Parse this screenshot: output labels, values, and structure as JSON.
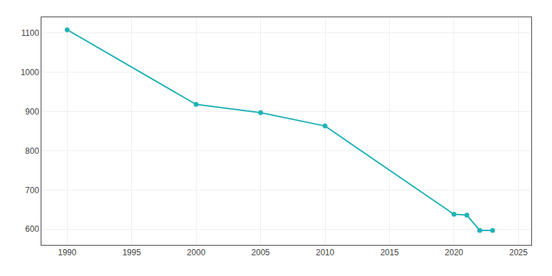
{
  "chart_data": {
    "type": "line",
    "x": [
      1990,
      2000,
      2005,
      2010,
      2020,
      2021,
      2022,
      2023
    ],
    "values": [
      1108,
      918,
      897,
      863,
      638,
      636,
      597,
      597
    ],
    "color": "#20b2b8",
    "marker": "circle",
    "xlim": [
      1988,
      2026
    ],
    "xticks": [
      1990,
      1995,
      2000,
      2005,
      2010,
      2015,
      2020,
      2025
    ],
    "ylim": [
      560,
      1140
    ],
    "yticks": [
      600,
      700,
      800,
      900,
      1000,
      1100
    ],
    "grid": true
  }
}
